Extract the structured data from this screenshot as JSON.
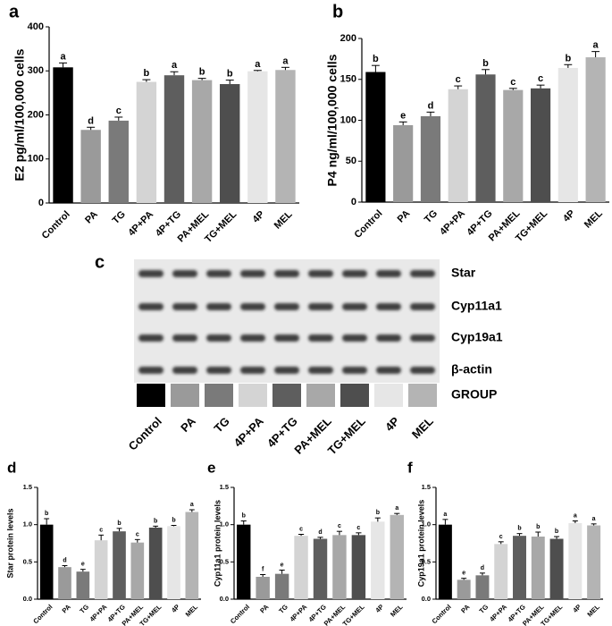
{
  "chart_data": [
    {
      "type": "bar",
      "panel": "a",
      "ylabel": "E2 pg/ml/100,000 cells",
      "categories": [
        "Control",
        "PA",
        "TG",
        "4P+PA",
        "4P+TG",
        "PA+MEL",
        "TG+MEL",
        "4P",
        "MEL"
      ],
      "values": [
        308,
        166,
        187,
        275,
        290,
        279,
        270,
        299,
        302
      ],
      "errors": [
        10,
        6,
        8,
        5,
        8,
        4,
        9,
        2,
        6
      ],
      "annotations": [
        "a",
        "d",
        "c",
        "b",
        "a",
        "b",
        "b",
        "a",
        "a"
      ],
      "colors": [
        "#000000",
        "#9a9a9a",
        "#7a7a7a",
        "#d4d4d4",
        "#5e5e5e",
        "#a8a8a8",
        "#4e4e4e",
        "#e6e6e6",
        "#b4b4b4"
      ],
      "ylim": [
        0,
        400
      ],
      "yticks": [
        0,
        100,
        200,
        300,
        400
      ]
    },
    {
      "type": "bar",
      "panel": "b",
      "ylabel": "P4 ng/ml/100,000 cells",
      "categories": [
        "Control",
        "PA",
        "TG",
        "4P+PA",
        "4P+TG",
        "PA+MEL",
        "TG+MEL",
        "4P",
        "MEL"
      ],
      "values": [
        159,
        94,
        105,
        138,
        156,
        137,
        139,
        164,
        177
      ],
      "errors": [
        8,
        4,
        5,
        4,
        6,
        2,
        4,
        4,
        7
      ],
      "annotations": [
        "b",
        "e",
        "d",
        "c",
        "b",
        "c",
        "c",
        "b",
        "a"
      ],
      "colors": [
        "#000000",
        "#9a9a9a",
        "#7a7a7a",
        "#d4d4d4",
        "#5e5e5e",
        "#a8a8a8",
        "#4e4e4e",
        "#e6e6e6",
        "#b4b4b4"
      ],
      "ylim": [
        0,
        200
      ],
      "yticks": [
        0,
        50,
        100,
        150,
        200
      ]
    },
    {
      "type": "bar",
      "panel": "d",
      "ylabel": "Star protein levels",
      "categories": [
        "Control",
        "PA",
        "TG",
        "4P+PA",
        "4P+TG",
        "PA+MEL",
        "TG+MEL",
        "4P",
        "MEL"
      ],
      "values": [
        1.0,
        0.43,
        0.37,
        0.79,
        0.91,
        0.76,
        0.96,
        0.98,
        1.17
      ],
      "errors": [
        0.08,
        0.02,
        0.03,
        0.07,
        0.04,
        0.04,
        0.02,
        0.01,
        0.03
      ],
      "annotations": [
        "b",
        "d",
        "e",
        "c",
        "b",
        "c",
        "b",
        "b",
        "a"
      ],
      "colors": [
        "#000000",
        "#9a9a9a",
        "#7a7a7a",
        "#d4d4d4",
        "#5e5e5e",
        "#a8a8a8",
        "#4e4e4e",
        "#e6e6e6",
        "#b4b4b4"
      ],
      "ylim": [
        0,
        1.5
      ],
      "yticks": [
        {
          "value": 0,
          "label": "0.0"
        },
        0.5,
        {
          "value": 1,
          "label": "1.0"
        },
        1.5
      ]
    },
    {
      "type": "bar",
      "panel": "e",
      "ylabel": "Cyp11a1 protein levels",
      "categories": [
        "Control",
        "PA",
        "TG",
        "4P+PA",
        "4P+TG",
        "PA+MEL",
        "TG+MEL",
        "4P",
        "MEL"
      ],
      "values": [
        1.0,
        0.3,
        0.34,
        0.85,
        0.81,
        0.86,
        0.86,
        1.04,
        1.13
      ],
      "errors": [
        0.05,
        0.03,
        0.05,
        0.02,
        0.02,
        0.05,
        0.03,
        0.05,
        0.02
      ],
      "annotations": [
        "b",
        "f",
        "e",
        "c",
        "d",
        "c",
        "c",
        "b",
        "a"
      ],
      "colors": [
        "#000000",
        "#9a9a9a",
        "#7a7a7a",
        "#d4d4d4",
        "#5e5e5e",
        "#a8a8a8",
        "#4e4e4e",
        "#e6e6e6",
        "#b4b4b4"
      ],
      "ylim": [
        0,
        1.5
      ],
      "yticks": [
        {
          "value": 0,
          "label": "0.0"
        },
        0.5,
        {
          "value": 1,
          "label": "1.0"
        },
        1.5
      ]
    },
    {
      "type": "bar",
      "panel": "f",
      "ylabel": "Cyp19a1 protein levels",
      "categories": [
        "Control",
        "PA",
        "TG",
        "4P+PA",
        "4P+TG",
        "PA+MEL",
        "TG+MEL",
        "4P",
        "MEL"
      ],
      "values": [
        1.0,
        0.26,
        0.32,
        0.74,
        0.85,
        0.84,
        0.81,
        1.02,
        0.99
      ],
      "errors": [
        0.07,
        0.02,
        0.03,
        0.03,
        0.03,
        0.06,
        0.03,
        0.03,
        0.02
      ],
      "annotations": [
        "a",
        "e",
        "d",
        "c",
        "b",
        "b",
        "b",
        "a",
        "a"
      ],
      "colors": [
        "#000000",
        "#9a9a9a",
        "#7a7a7a",
        "#d4d4d4",
        "#5e5e5e",
        "#a8a8a8",
        "#4e4e4e",
        "#e6e6e6",
        "#b4b4b4"
      ],
      "ylim": [
        0,
        1.5
      ],
      "yticks": [
        {
          "value": 0,
          "label": "0.0"
        },
        0.5,
        {
          "value": 1,
          "label": "1.0"
        },
        1.5
      ]
    }
  ],
  "blot": {
    "panel": "c",
    "rows": [
      "Star",
      "Cyp11a1",
      "Cyp19a1",
      "β-actin",
      "GROUP"
    ],
    "categories": [
      "Control",
      "PA",
      "TG",
      "4P+PA",
      "4P+TG",
      "PA+MEL",
      "TG+MEL",
      "4P",
      "MEL"
    ],
    "colors": [
      "#000000",
      "#9a9a9a",
      "#7a7a7a",
      "#d4d4d4",
      "#5e5e5e",
      "#a8a8a8",
      "#4e4e4e",
      "#e6e6e6",
      "#b4b4b4"
    ]
  }
}
